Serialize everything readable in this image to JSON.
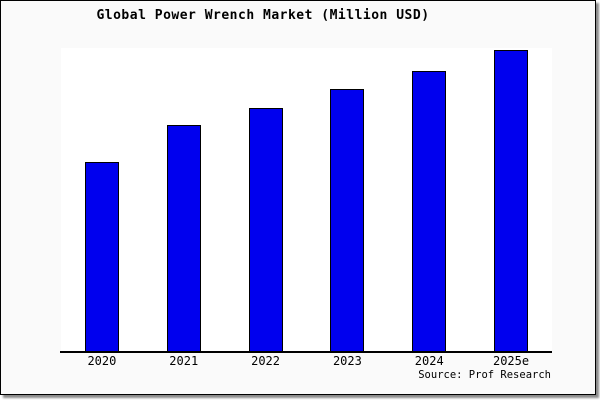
{
  "page": {
    "title": "Global Power Wrench Market (Million USD)",
    "source_label": "Source: Prof Research"
  },
  "colors": {
    "page_background": "#fafafa",
    "plot_background": "#ffffff",
    "bar_fill": "#0000ee",
    "bar_border": "#000000",
    "axis_line": "#000000",
    "text": "#000000",
    "frame_border": "#000000",
    "frame_shadow": "#8a8a8a"
  },
  "chart_data": {
    "type": "bar",
    "title": "Global Power Wrench Market (Million USD)",
    "categories": [
      "2020",
      "2021",
      "2022",
      "2023",
      "2024",
      "2025e"
    ],
    "values": [
      190,
      227,
      244,
      263,
      281,
      302
    ],
    "values_estimated": true,
    "value_unit": "relative height (no y-axis labels shown in chart)",
    "xlabel": "",
    "ylabel": "",
    "ylim": [
      0,
      304
    ],
    "grid": false,
    "legend": false,
    "source": "Source: Prof Research"
  }
}
